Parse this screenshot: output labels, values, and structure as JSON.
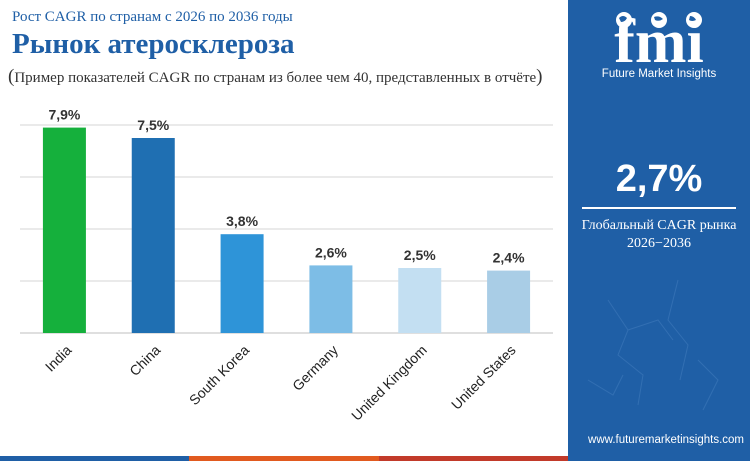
{
  "header": {
    "subtitle": "Рост CAGR по странам с 2026 по 2036 годы",
    "title": "Рынок атеросклероза",
    "note_open": "(",
    "note_text": "Пример показателей CAGR по странам из более чем 40, представленных в отчёте",
    "note_close": ")"
  },
  "chart_data": {
    "type": "bar",
    "categories": [
      "India",
      "China",
      "South Korea",
      "Germany",
      "United Kingdom",
      "United States"
    ],
    "values": [
      7.9,
      7.5,
      3.8,
      2.6,
      2.5,
      2.4
    ],
    "value_labels": [
      "7,9%",
      "7,5%",
      "3,8%",
      "2,6%",
      "2,5%",
      "2,4%"
    ],
    "colors": [
      "#15b03c",
      "#1f6fb2",
      "#2e94d8",
      "#7dbde6",
      "#c3dff2",
      "#a9cde6"
    ],
    "ylim": [
      0,
      8
    ],
    "grid": true,
    "gridline_values": [
      2,
      4,
      6,
      8
    ]
  },
  "bottom_bar_colors": [
    "#1f5fa6",
    "#e15a1f",
    "#c23a2a"
  ],
  "panel": {
    "logo_text": "fmi",
    "tagline": "Future Market Insights",
    "global_value": "2,7%",
    "global_label": "Глобальный CAGR рынка",
    "global_period": "2026−2036",
    "website": "www.futuremarketinsights.com",
    "background_color": "#1f5fa6"
  }
}
